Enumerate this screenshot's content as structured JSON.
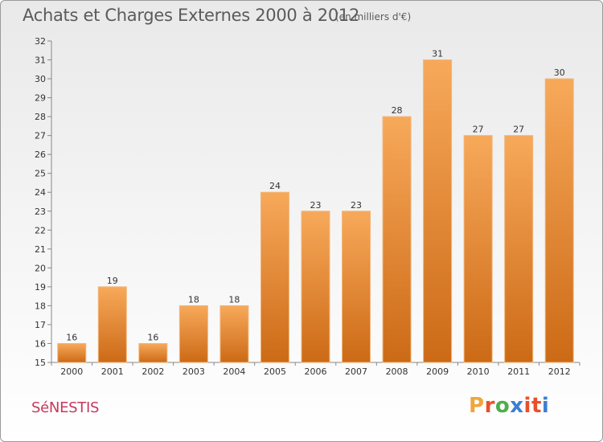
{
  "header": {
    "title": "Achats et Charges Externes 2000 à 2012",
    "unit": "(en milliers d'€)"
  },
  "footer": {
    "commune": "SéNESTIS",
    "logo_text": "Proxiti",
    "logo_colors": [
      "#f0a53c",
      "#e8502a",
      "#4fae4a",
      "#3c7fd2",
      "#e8502a",
      "#e8502a",
      "#3c7fd2"
    ]
  },
  "chart_data": {
    "type": "bar",
    "categories": [
      "2000",
      "2001",
      "2002",
      "2003",
      "2004",
      "2005",
      "2006",
      "2007",
      "2008",
      "2009",
      "2010",
      "2011",
      "2012"
    ],
    "values": [
      16,
      19,
      16,
      18,
      18,
      24,
      23,
      23,
      28,
      31,
      27,
      27,
      30
    ],
    "ylim": [
      15,
      32
    ],
    "yticks": [
      15,
      16,
      17,
      18,
      19,
      20,
      21,
      22,
      23,
      24,
      25,
      26,
      27,
      28,
      29,
      30,
      31,
      32
    ],
    "grid": false,
    "bar_color_top": "#f7a95a",
    "bar_color_bottom": "#cc6a16"
  }
}
